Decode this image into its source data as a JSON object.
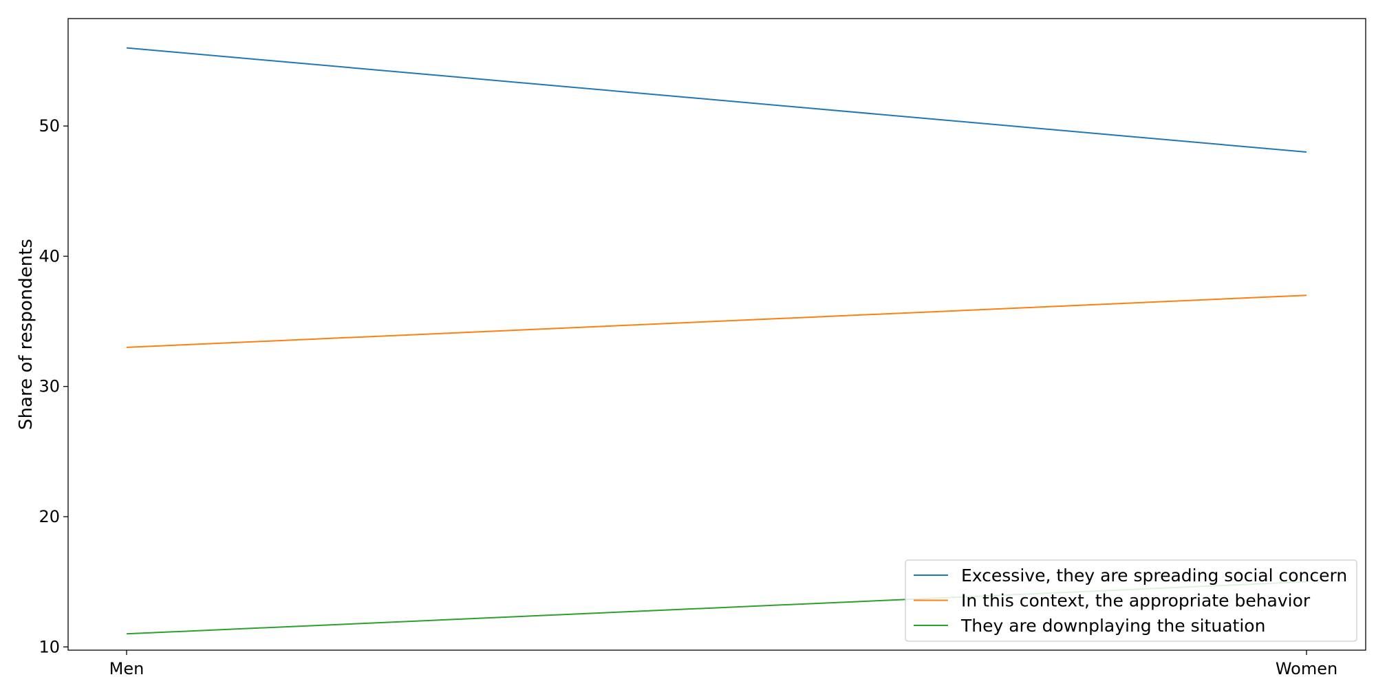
{
  "chart_data": {
    "type": "line",
    "title": "",
    "xlabel": "",
    "ylabel": "Share of respondents",
    "categories": [
      "Men",
      "Women"
    ],
    "series": [
      {
        "name": "Excessive, they are spreading social concern",
        "values": [
          56,
          48
        ],
        "color": "#1f77b4"
      },
      {
        "name": "In this context, the appropriate behavior",
        "values": [
          33,
          37
        ],
        "color": "#ff7f0e"
      },
      {
        "name": "They are downplaying the situation",
        "values": [
          11,
          15
        ],
        "color": "#2ca02c"
      }
    ],
    "ylim": [
      9.75,
      58.25
    ],
    "yticks": [
      10,
      20,
      30,
      40,
      50
    ],
    "grid": false,
    "legend": {
      "position": "lower-right"
    }
  }
}
